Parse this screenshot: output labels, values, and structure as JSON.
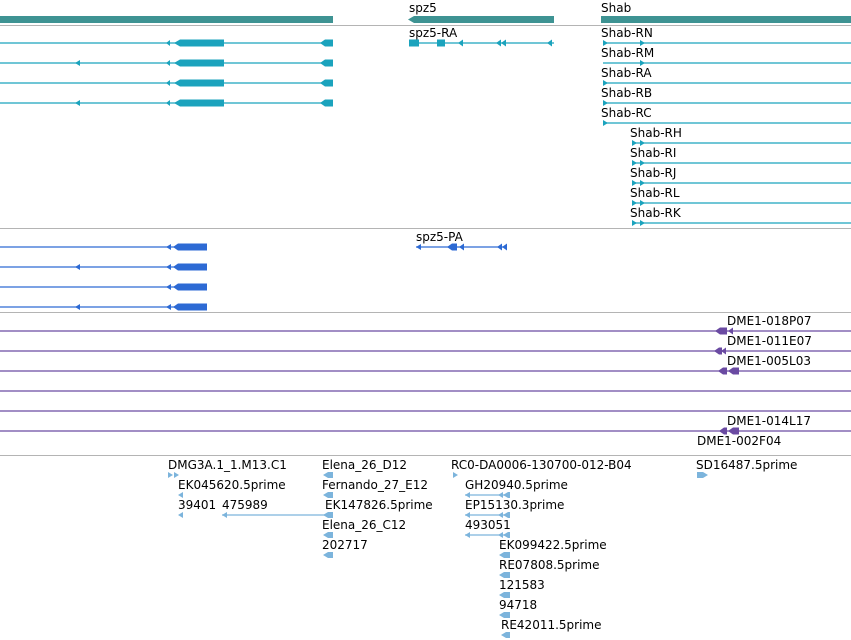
{
  "colors": {
    "gene": "#3e9393",
    "transcript": "#1ba3bd",
    "protein": "#2d6ad4",
    "clone": "#6a4aa2",
    "est": "#7cb4dc",
    "separator": "#b4b4b4"
  },
  "genes": [
    {
      "label": "",
      "direction": "none"
    },
    {
      "label": "spz5",
      "direction": "left"
    },
    {
      "label": "Shab",
      "direction": "none"
    }
  ],
  "transcripts": [
    "spz5-RA",
    "Shab-RN",
    "Shab-RM",
    "Shab-RA",
    "Shab-RB",
    "Shab-RC",
    "Shab-RH",
    "Shab-RI",
    "Shab-RJ",
    "Shab-RL",
    "Shab-RK"
  ],
  "proteins": [
    "spz5-PA"
  ],
  "clones": [
    "DME1-018P07",
    "DME1-011E07",
    "DME1-005L03",
    "DME1-014L17",
    "DME1-002F04"
  ],
  "ests": [
    "DMG3A.1_1.M13.C1",
    "EK045620.5prime",
    "39401",
    "475989",
    "Elena_26_D12",
    "Fernando_27_E12",
    "EK147826.5prime",
    "Elena_26_C12",
    "202717",
    "RC0-DA0006-130700-012-B04",
    "GH20940.5prime",
    "EP15130.3prime",
    "493051",
    "EK099422.5prime",
    "RE07808.5prime",
    "121583",
    "94718",
    "RE42011.5prime",
    "SD16487.5prime"
  ]
}
